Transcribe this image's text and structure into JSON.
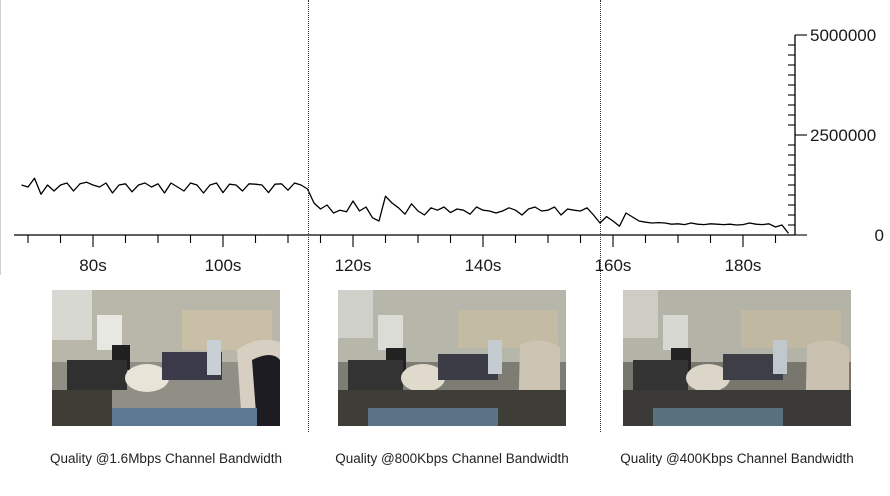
{
  "chart_data": {
    "type": "line",
    "title": "",
    "xlabel": "",
    "ylabel": "",
    "xlim": [
      68,
      188
    ],
    "ylim": [
      0,
      5000000
    ],
    "y_axis_position": "right",
    "grid": false,
    "x_ticks": [
      80,
      100,
      120,
      140,
      160,
      180
    ],
    "x_tick_labels": [
      "80s",
      "100s",
      "120s",
      "140s",
      "160s",
      "180s"
    ],
    "y_ticks": [
      0,
      2500000,
      5000000
    ],
    "y_tick_labels": [
      "0",
      "2500000",
      "5000000"
    ],
    "event_lines_x": [
      113,
      158
    ],
    "series": [
      {
        "color": "#000000",
        "x": [
          69,
          70,
          71,
          72,
          73,
          74,
          75,
          76,
          77,
          78,
          79,
          80,
          81,
          82,
          83,
          84,
          85,
          86,
          87,
          88,
          89,
          90,
          91,
          92,
          93,
          94,
          95,
          96,
          97,
          98,
          99,
          100,
          101,
          102,
          103,
          104,
          105,
          106,
          107,
          108,
          109,
          110,
          111,
          112,
          113,
          114,
          115,
          116,
          117,
          118,
          119,
          120,
          121,
          122,
          123,
          124,
          125,
          126,
          127,
          128,
          129,
          130,
          131,
          132,
          133,
          134,
          135,
          136,
          137,
          138,
          139,
          140,
          141,
          142,
          143,
          144,
          145,
          146,
          147,
          148,
          149,
          150,
          151,
          152,
          153,
          154,
          155,
          156,
          157,
          158,
          159,
          160,
          161,
          162,
          163,
          164,
          165,
          166,
          167,
          168,
          169,
          170,
          171,
          172,
          173,
          174,
          175,
          176,
          177,
          178,
          179,
          180,
          181,
          182,
          183,
          184,
          185,
          186,
          187
        ],
        "y": [
          1250000,
          1200000,
          1420000,
          1020000,
          1250000,
          1100000,
          1250000,
          1300000,
          1100000,
          1280000,
          1320000,
          1250000,
          1200000,
          1300000,
          1050000,
          1250000,
          1280000,
          1080000,
          1250000,
          1300000,
          1200000,
          1280000,
          1050000,
          1300000,
          1200000,
          1100000,
          1300000,
          1250000,
          1050000,
          1250000,
          1300000,
          1060000,
          1270000,
          1250000,
          1100000,
          1280000,
          1270000,
          1250000,
          1060000,
          1270000,
          1280000,
          1120000,
          1300000,
          1250000,
          1150000,
          800000,
          650000,
          750000,
          550000,
          620000,
          580000,
          850000,
          600000,
          700000,
          430000,
          350000,
          970000,
          800000,
          680000,
          520000,
          780000,
          600000,
          500000,
          680000,
          620000,
          700000,
          560000,
          650000,
          620000,
          520000,
          700000,
          620000,
          600000,
          550000,
          600000,
          680000,
          620000,
          500000,
          650000,
          700000,
          600000,
          620000,
          700000,
          500000,
          650000,
          620000,
          600000,
          680000,
          500000,
          300000,
          460000,
          350000,
          220000,
          550000,
          450000,
          350000,
          320000,
          300000,
          310000,
          300000,
          270000,
          280000,
          260000,
          300000,
          270000,
          260000,
          280000,
          270000,
          260000,
          270000,
          250000,
          260000,
          300000,
          270000,
          260000,
          280000,
          200000,
          250000,
          40000
        ]
      }
    ]
  },
  "captions": [
    "Quality @1.6Mbps Channel Bandwidth",
    "Quality @800Kbps Channel Bandwidth",
    "Quality @400Kbps Channel Bandwidth"
  ]
}
